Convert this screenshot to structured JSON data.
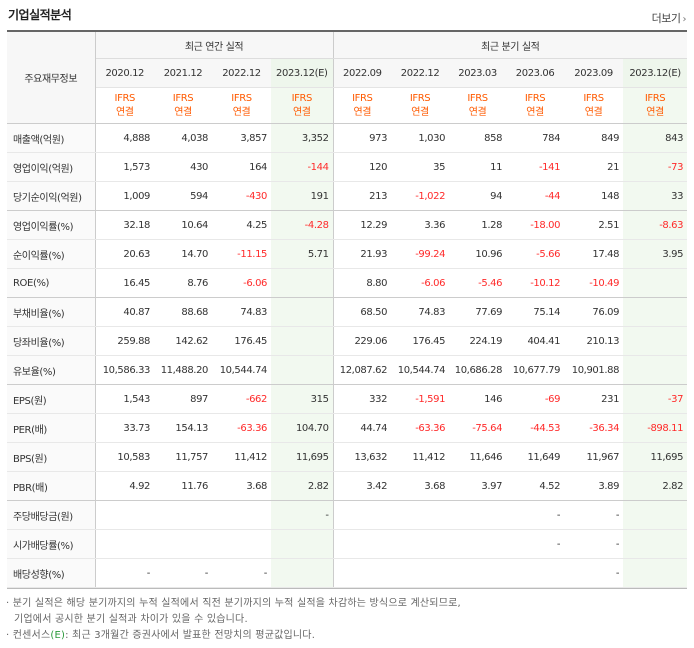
{
  "header": {
    "title": "기업실적분석",
    "more_label": "더보기"
  },
  "table": {
    "label_header": "주요재무정보",
    "groups": {
      "annual": "최근 연간 실적",
      "quarterly": "최근 분기 실적"
    },
    "annual_dates": [
      "2020.12",
      "2021.12",
      "2022.12",
      "2023.12(E)"
    ],
    "quarter_dates": [
      "2022.09",
      "2022.12",
      "2023.03",
      "2023.06",
      "2023.09",
      "2023.12(E)"
    ],
    "ifrs_line1": "IFRS",
    "ifrs_line2": "연결",
    "rows": [
      {
        "label": "매출액(억원)",
        "cells": [
          "4,888",
          "4,038",
          "3,857",
          "3,352",
          "973",
          "1,030",
          "858",
          "784",
          "849",
          "843"
        ]
      },
      {
        "label": "영업이익(억원)",
        "cells": [
          "1,573",
          "430",
          "164",
          "-144",
          "120",
          "35",
          "11",
          "-141",
          "21",
          "-73"
        ]
      },
      {
        "label": "당기순이익(억원)",
        "cells": [
          "1,009",
          "594",
          "-430",
          "191",
          "213",
          "-1,022",
          "94",
          "-44",
          "148",
          "33"
        ]
      },
      {
        "label": "영업이익률(%)",
        "cells": [
          "32.18",
          "10.64",
          "4.25",
          "-4.28",
          "12.29",
          "3.36",
          "1.28",
          "-18.00",
          "2.51",
          "-8.63"
        ]
      },
      {
        "label": "순이익률(%)",
        "cells": [
          "20.63",
          "14.70",
          "-11.15",
          "5.71",
          "21.93",
          "-99.24",
          "10.96",
          "-5.66",
          "17.48",
          "3.95"
        ]
      },
      {
        "label": "ROE(%)",
        "cells": [
          "16.45",
          "8.76",
          "-6.06",
          "",
          "8.80",
          "-6.06",
          "-5.46",
          "-10.12",
          "-10.49",
          ""
        ]
      },
      {
        "label": "부채비율(%)",
        "cells": [
          "40.87",
          "88.68",
          "74.83",
          "",
          "68.50",
          "74.83",
          "77.69",
          "75.14",
          "76.09",
          ""
        ]
      },
      {
        "label": "당좌비율(%)",
        "cells": [
          "259.88",
          "142.62",
          "176.45",
          "",
          "229.06",
          "176.45",
          "224.19",
          "404.41",
          "210.13",
          ""
        ]
      },
      {
        "label": "유보율(%)",
        "cells": [
          "10,586.33",
          "11,488.20",
          "10,544.74",
          "",
          "12,087.62",
          "10,544.74",
          "10,686.28",
          "10,677.79",
          "10,901.88",
          ""
        ]
      },
      {
        "label": "EPS(원)",
        "cells": [
          "1,543",
          "897",
          "-662",
          "315",
          "332",
          "-1,591",
          "146",
          "-69",
          "231",
          "-37"
        ]
      },
      {
        "label": "PER(배)",
        "cells": [
          "33.73",
          "154.13",
          "-63.36",
          "104.70",
          "44.74",
          "-63.36",
          "-75.64",
          "-44.53",
          "-36.34",
          "-898.11"
        ]
      },
      {
        "label": "BPS(원)",
        "cells": [
          "10,583",
          "11,757",
          "11,412",
          "11,695",
          "13,632",
          "11,412",
          "11,646",
          "11,649",
          "11,967",
          "11,695"
        ]
      },
      {
        "label": "PBR(배)",
        "cells": [
          "4.92",
          "11.76",
          "3.68",
          "2.82",
          "3.42",
          "3.68",
          "3.97",
          "4.52",
          "3.89",
          "2.82"
        ]
      },
      {
        "label": "주당배당금(원)",
        "cells": [
          "",
          "",
          "",
          "-",
          "",
          "",
          "",
          "-",
          "-",
          ""
        ]
      },
      {
        "label": "시가배당률(%)",
        "cells": [
          "",
          "",
          "",
          "",
          "",
          "",
          "",
          "-",
          "-",
          ""
        ]
      },
      {
        "label": "배당성향(%)",
        "cells": [
          "-",
          "-",
          "-",
          "",
          "",
          "",
          "",
          "",
          "-",
          ""
        ]
      }
    ]
  },
  "notes": {
    "line1": "· 분기 실적은 해당 분기까지의 누적 실적에서 직전 분기까지의 누적 실적을 차감하는 방식으로 계산되므로,",
    "line2": "기업에서 공시한 분기 실적과 차이가 있을 수 있습니다.",
    "line3_prefix": "· 컨센서스",
    "line3_e": "(E)",
    "line3_suffix": ": 최근 3개월간 증권사에서 발표한 전망치의 평균값입니다."
  },
  "colors": {
    "negative": "#ff2a2a",
    "ifrs": "#ff5a00",
    "estimate_bg": "#f2f9f0",
    "e_mark": "#2a9a3a"
  }
}
